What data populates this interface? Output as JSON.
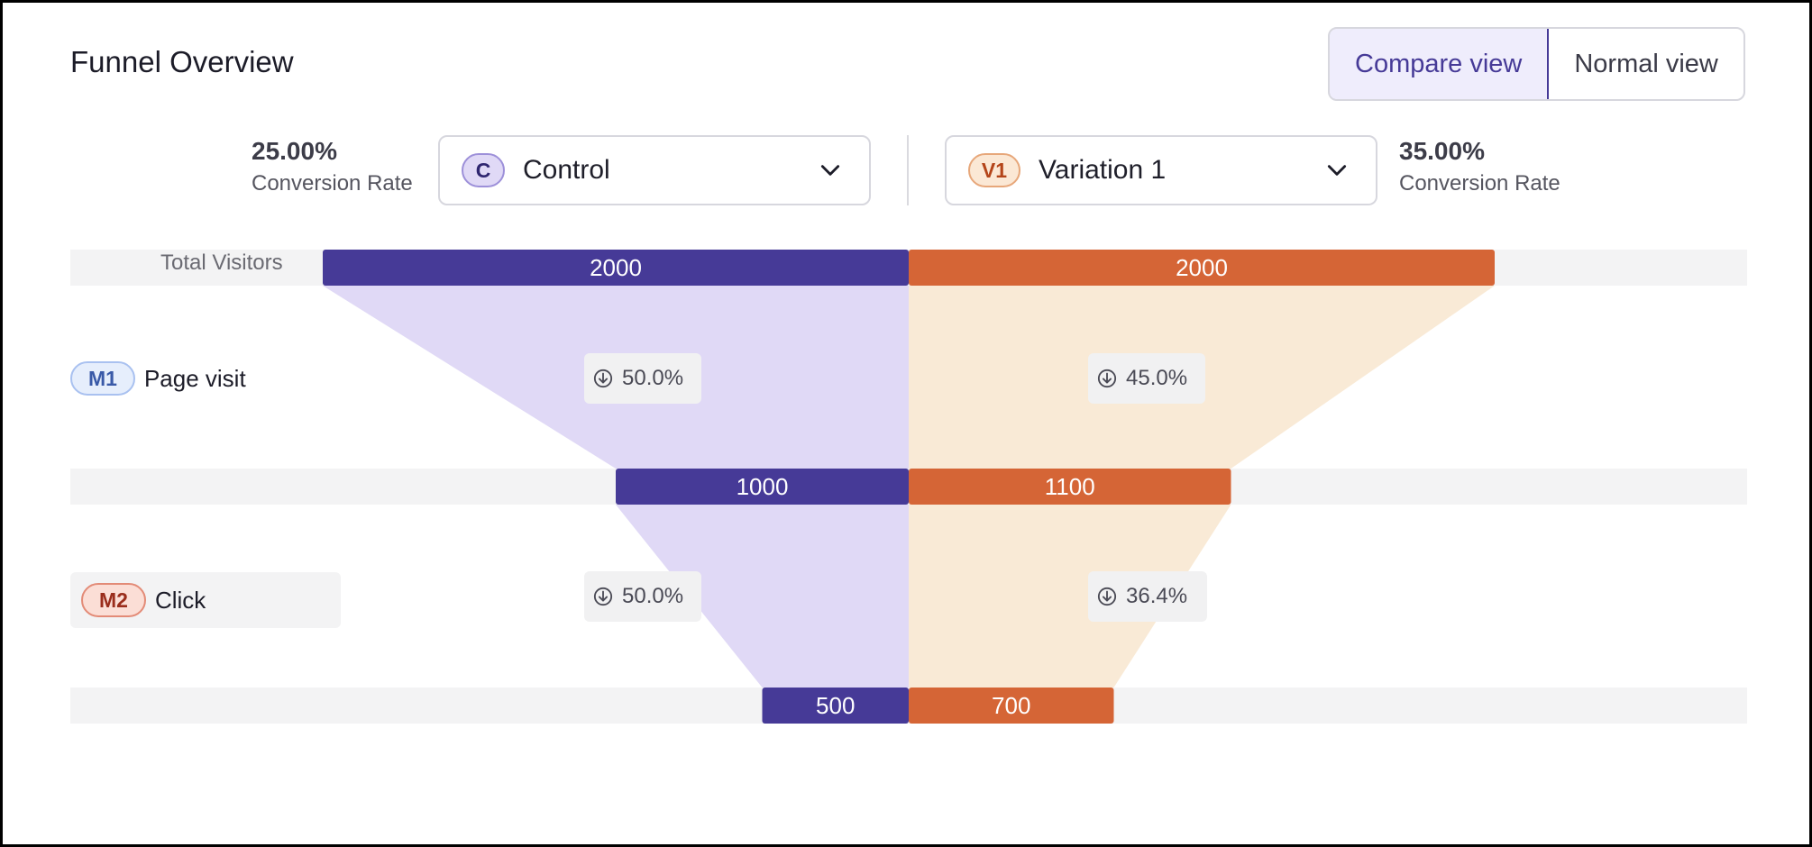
{
  "header": {
    "title": "Funnel Overview",
    "view_toggle": {
      "compare_label": "Compare view",
      "normal_label": "Normal view",
      "selected": "Compare view"
    }
  },
  "left": {
    "conversion_rate": "25.00%",
    "conversion_label": "Conversion Rate",
    "badge": "C",
    "name": "Control",
    "icon": "chevron-down-icon"
  },
  "right": {
    "conversion_rate": "35.00%",
    "conversion_label": "Conversion Rate",
    "badge": "V1",
    "name": "Variation 1",
    "icon": "chevron-down-icon"
  },
  "rows": {
    "total_label": "Total Visitors",
    "metrics": [
      {
        "badge": "M1",
        "name": "Page visit"
      },
      {
        "badge": "M2",
        "name": "Click"
      }
    ]
  },
  "colors": {
    "control": "#463a97",
    "control_fill": "#e0d9f6",
    "variation": "#d56536",
    "variation_fill": "#f9ead6"
  },
  "chart_data": {
    "type": "bar",
    "categories": [
      "Total Visitors",
      "Page visit",
      "Click"
    ],
    "series": [
      {
        "name": "Control",
        "values": [
          2000,
          1000,
          500
        ],
        "drop_labels": [
          "50.0%",
          "50.0%"
        ]
      },
      {
        "name": "Variation 1",
        "values": [
          2000,
          1100,
          700
        ],
        "drop_labels": [
          "45.0%",
          "36.4%"
        ]
      }
    ],
    "max_value": 2000
  }
}
